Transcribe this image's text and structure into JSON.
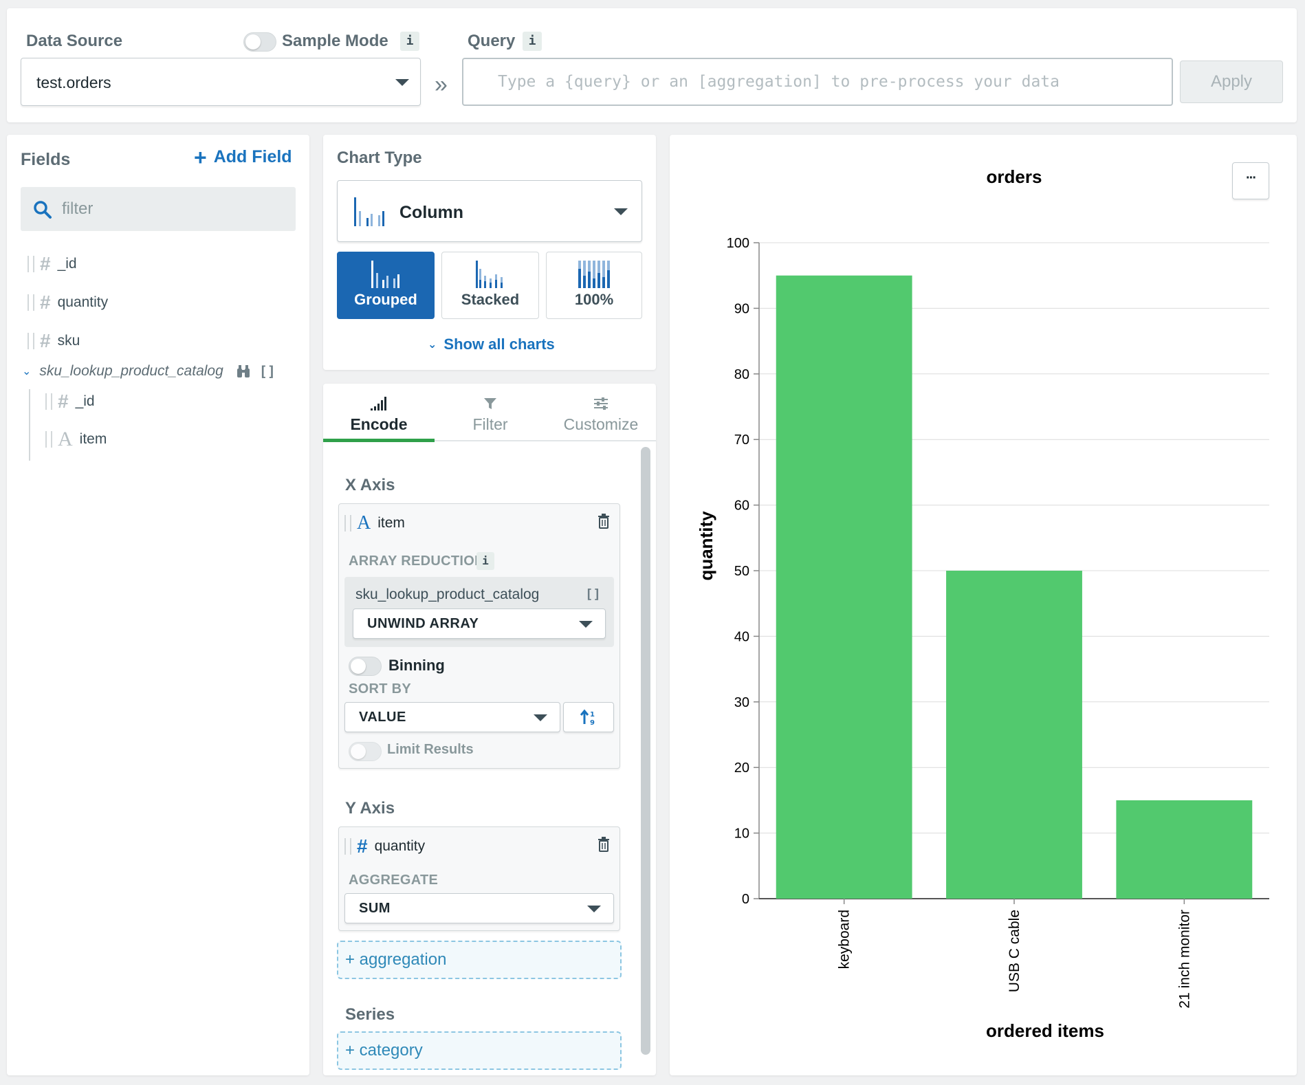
{
  "top": {
    "data_source_label": "Data Source",
    "sample_mode_label": "Sample Mode",
    "info_glyph": "i",
    "data_source_value": "test.orders",
    "separator": "»",
    "query_label": "Query",
    "query_placeholder": "Type a {query} or an [aggregation] to pre-process your data",
    "apply_label": "Apply"
  },
  "fields": {
    "title": "Fields",
    "add_field_label": "Add Field",
    "filter_placeholder": "filter",
    "items": [
      {
        "name": "_id",
        "type": "number"
      },
      {
        "name": "quantity",
        "type": "number"
      },
      {
        "name": "sku",
        "type": "number"
      },
      {
        "name": "sku_lookup_product_catalog",
        "type": "array"
      }
    ],
    "sub_items": [
      {
        "name": "_id",
        "type": "number"
      },
      {
        "name": "item",
        "type": "string"
      }
    ]
  },
  "chart_type": {
    "title": "Chart Type",
    "selected": "Column",
    "variants": [
      "Grouped",
      "Stacked",
      "100%"
    ],
    "selected_variant": "Grouped",
    "show_all_label": "Show all charts"
  },
  "tabs": [
    "Encode",
    "Filter",
    "Customize"
  ],
  "active_tab": "Encode",
  "encode": {
    "x_axis_label": "X Axis",
    "x_field": "item",
    "array_reductions_label": "ARRAY REDUCTIONS",
    "array_field": "sku_lookup_product_catalog",
    "array_method": "UNWIND ARRAY",
    "binning_label": "Binning",
    "sort_by_label": "SORT BY",
    "sort_value": "VALUE",
    "limit_label": "Limit Results",
    "y_axis_label": "Y Axis",
    "y_field": "quantity",
    "aggregate_label": "AGGREGATE",
    "aggregate_value": "SUM",
    "add_aggregation_label": "+ aggregation",
    "series_label": "Series",
    "add_category_label": "+ category"
  },
  "colors": {
    "accent": "#1a73be",
    "bar": "#52c96e",
    "selected_button": "#1b67b2"
  },
  "chart_data": {
    "type": "bar",
    "title": "orders",
    "xlabel": "ordered items",
    "ylabel": "quantity",
    "categories": [
      "keyboard",
      "USB C cable",
      "21 inch monitor"
    ],
    "values": [
      95,
      50,
      15
    ],
    "ylim": [
      0,
      100
    ],
    "yticks": [
      0,
      10,
      20,
      30,
      40,
      50,
      60,
      70,
      80,
      90,
      100
    ],
    "grid": true,
    "menu_glyph": "···"
  }
}
